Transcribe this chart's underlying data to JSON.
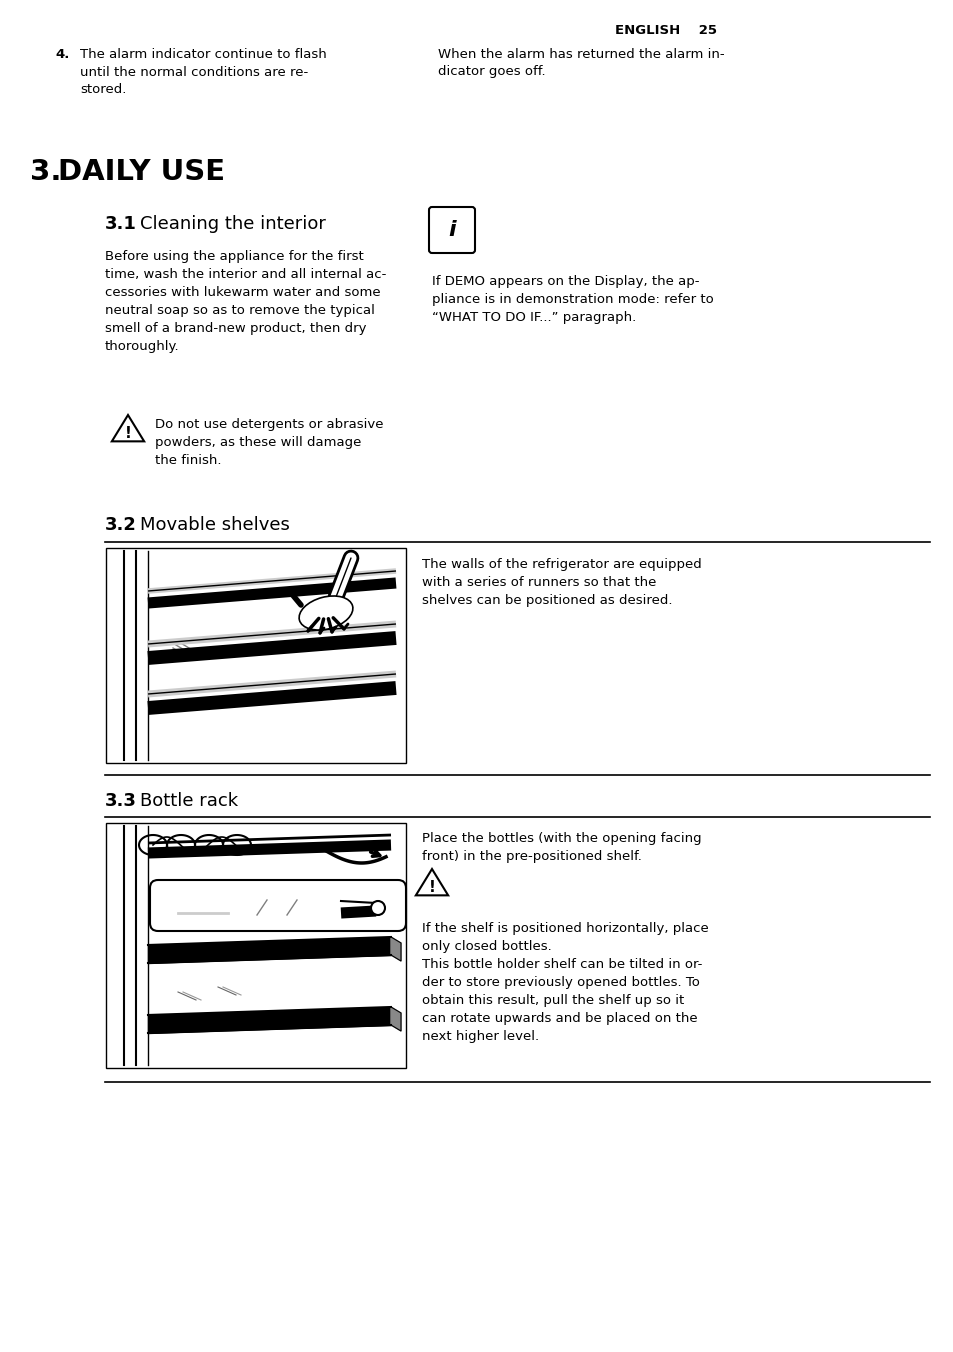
{
  "page_header": "ENGLISH    25",
  "section4_number": "4.",
  "section4_left": "The alarm indicator continue to flash\nuntil the normal conditions are re-\nstored.",
  "section4_right": "When the alarm has returned the alarm in-\ndicator goes off.",
  "main_section": "3.",
  "main_title": " DAILY USE",
  "sub31_bold": "3.1",
  "sub31_text": "Cleaning the interior",
  "body31": "Before using the appliance for the first\ntime, wash the interior and all internal ac-\ncessories with lukewarm water and some\nneutral soap so as to remove the typical\nsmell of a brand-new product, then dry\nthoroughly.",
  "warning31": "Do not use detergents or abrasive\npowders, as these will damage\nthe finish.",
  "info_right": "If DEMO appears on the Display, the ap-\npliance is in demonstration mode: refer to\n“WHAT TO DO IF...” paragraph.",
  "sub32_bold": "3.2",
  "sub32_text": "Movable shelves",
  "desc32": "The walls of the refrigerator are equipped\nwith a series of runners so that the\nshelves can be positioned as desired.",
  "sub33_bold": "3.3",
  "sub33_text": "Bottle rack",
  "desc33_top": "Place the bottles (with the opening facing\nfront) in the pre-positioned shelf.",
  "desc33_bot": "If the shelf is positioned horizontally, place\nonly closed bottles.\nThis bottle holder shelf can be tilted in or-\nder to store previously opened bottles. To\nobtain this result, pull the shelf up so it\ncan rotate upwards and be placed on the\nnext higher level.",
  "bg_color": "#ffffff",
  "text_color": "#000000",
  "font_size_body": 9.5,
  "font_size_section": 22,
  "font_size_sub": 13
}
